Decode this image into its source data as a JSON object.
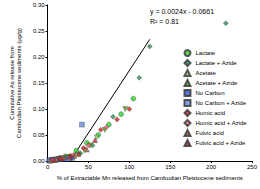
{
  "chart_data": {
    "type": "scatter",
    "x_label": "% of Extractable Mn released from Cambodian Pleistocene sediments",
    "y_label": "Cumulative As release from\nCambodian Pleistocene sediments (µg/g)",
    "annotations": [
      "y = 0.0024x - 0.0661",
      "R² = 0.81"
    ],
    "xlim": [
      0,
      250
    ],
    "xticks": [
      0,
      50,
      100,
      150,
      200,
      250
    ],
    "ylim": [
      0,
      0.3
    ],
    "yticks": [
      {
        "value": 0,
        "label": "0.00"
      },
      {
        "value": 0.05,
        "label": "0.05"
      },
      {
        "value": 0.1,
        "label": "0.10"
      },
      {
        "value": 0.15,
        "label": "0.15"
      },
      {
        "value": 0.2,
        "label": "0.20"
      },
      {
        "value": 0.25,
        "label": "0.25"
      },
      {
        "value": 0.3,
        "label": "0.30"
      }
    ],
    "grid": false,
    "legend": "right",
    "series": [
      {
        "name": "Lactate",
        "color": "#33cc33",
        "marker": "circle",
        "x": [
          3,
          8,
          15,
          22,
          35,
          48,
          62,
          75,
          90,
          105
        ],
        "values": [
          0.001,
          0.003,
          0.006,
          0.009,
          0.02,
          0.035,
          0.05,
          0.07,
          0.09,
          0.12
        ]
      },
      {
        "name": "Lactate + Azide",
        "color": "#2e8b57",
        "marker": "diamond",
        "x": [
          5,
          12,
          25,
          40,
          55,
          80,
          112,
          125,
          218
        ],
        "values": [
          0.002,
          0.004,
          0.008,
          0.015,
          0.03,
          0.085,
          0.16,
          0.22,
          0.265
        ]
      },
      {
        "name": "Acetate",
        "color": "#99cc66",
        "marker": "triangle-down",
        "x": [
          4,
          10,
          18,
          28,
          45,
          60
        ],
        "values": [
          0.001,
          0.003,
          0.005,
          0.008,
          0.02,
          0.045
        ]
      },
      {
        "name": "Acetate + Azide",
        "color": "#559922",
        "marker": "triangle-down",
        "x": [
          6,
          14,
          24,
          38,
          52,
          70,
          95
        ],
        "values": [
          0.002,
          0.004,
          0.007,
          0.012,
          0.03,
          0.06,
          0.1
        ]
      },
      {
        "name": "No Carbon",
        "color": "#3355cc",
        "marker": "square",
        "x": [
          2,
          6,
          12,
          20,
          30
        ],
        "values": [
          0.001,
          0.002,
          0.003,
          0.004,
          0.006
        ]
      },
      {
        "name": "No Carbon + Azide",
        "color": "#6688dd",
        "marker": "square",
        "x": [
          3,
          9,
          16,
          26,
          42
        ],
        "values": [
          0.001,
          0.002,
          0.004,
          0.005,
          0.07
        ]
      },
      {
        "name": "Humic acid",
        "color": "#cc2222",
        "marker": "diamond",
        "x": [
          5,
          15,
          28,
          44,
          65,
          85,
          100
        ],
        "values": [
          0.002,
          0.005,
          0.01,
          0.025,
          0.06,
          0.08,
          0.1
        ]
      },
      {
        "name": "Humic acid + Azide",
        "color": "#ee6677",
        "marker": "diamond",
        "x": [
          7,
          18,
          32,
          50,
          72
        ],
        "values": [
          0.002,
          0.006,
          0.012,
          0.03,
          0.065
        ]
      },
      {
        "name": "Fulvic acid",
        "color": "#996633",
        "marker": "triangle",
        "x": [
          4,
          11,
          20,
          33,
          48
        ],
        "values": [
          0.001,
          0.004,
          0.007,
          0.01,
          0.022
        ]
      },
      {
        "name": "Fulvic acid + Azide",
        "color": "#aa3333",
        "marker": "triangle",
        "x": [
          8,
          17,
          27,
          38,
          58
        ],
        "values": [
          0.002,
          0.005,
          0.008,
          0.014,
          0.04
        ]
      },
      {
        "type": "line",
        "color": "#000000",
        "line_style": "solid",
        "x": [
          27.5,
          125
        ],
        "values": [
          0,
          0.234
        ]
      }
    ]
  }
}
